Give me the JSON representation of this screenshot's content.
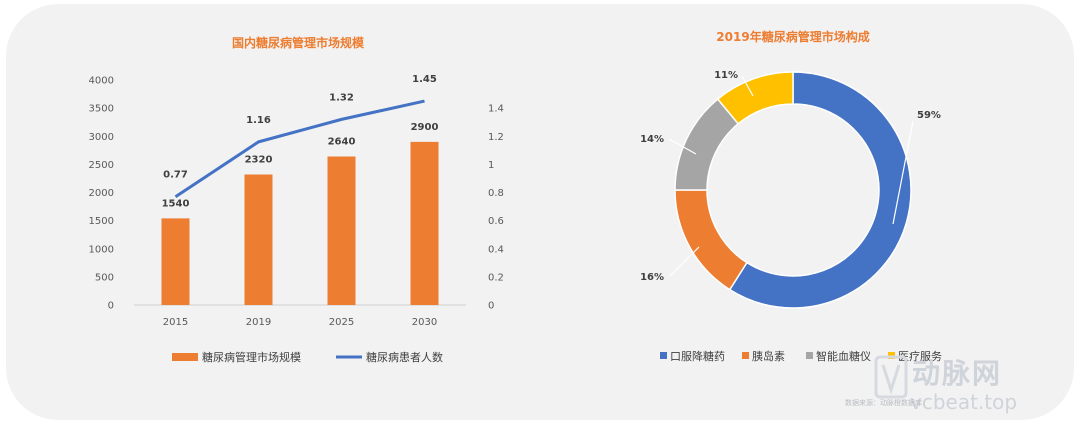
{
  "colors": {
    "orange": "#ed7d31",
    "blue": "#4472c4",
    "gray": "#a5a5a5",
    "gold": "#ffc000"
  },
  "watermark": {
    "brand": "动脉网",
    "site": "vcbeat.top",
    "note": "数据来源：动脉橙数据库"
  },
  "chart_data": [
    {
      "type": "bar",
      "title": "国内糖尿病管理市场规模",
      "categories": [
        "2015",
        "2019",
        "2025",
        "2030"
      ],
      "series": [
        {
          "name": "糖尿病管理市场规模",
          "kind": "bar",
          "axis": "left",
          "values": [
            1540,
            2320,
            2640,
            2900
          ],
          "labels": [
            "1540",
            "2320",
            "2640",
            "2900"
          ]
        },
        {
          "name": "糖尿病患者人数",
          "kind": "line",
          "axis": "right",
          "values": [
            0.77,
            1.16,
            1.32,
            1.45
          ],
          "labels": [
            "0.77",
            "1.16",
            "1.32",
            "1.45"
          ]
        }
      ],
      "ylim": [
        0,
        4000
      ],
      "y2lim": [
        0,
        1.6
      ],
      "yticks": [
        "0",
        "500",
        "1000",
        "1500",
        "2000",
        "2500",
        "3000",
        "3500",
        "4000"
      ],
      "y2ticks": [
        "0",
        "0.2",
        "0.4",
        "0.6",
        "0.8",
        "1",
        "1.2",
        "1.4"
      ],
      "legend": "bottom"
    },
    {
      "type": "pie",
      "title": "2019年糖尿病管理市场构成",
      "donut": true,
      "slices": [
        {
          "name": "口服降糖药",
          "value": 59,
          "label": "59%"
        },
        {
          "name": "胰岛素",
          "value": 16,
          "label": "16%"
        },
        {
          "name": "智能血糖仪",
          "value": 14,
          "label": "14%"
        },
        {
          "name": "医疗服务",
          "value": 11,
          "label": "11%"
        }
      ],
      "legend": "bottom"
    }
  ]
}
